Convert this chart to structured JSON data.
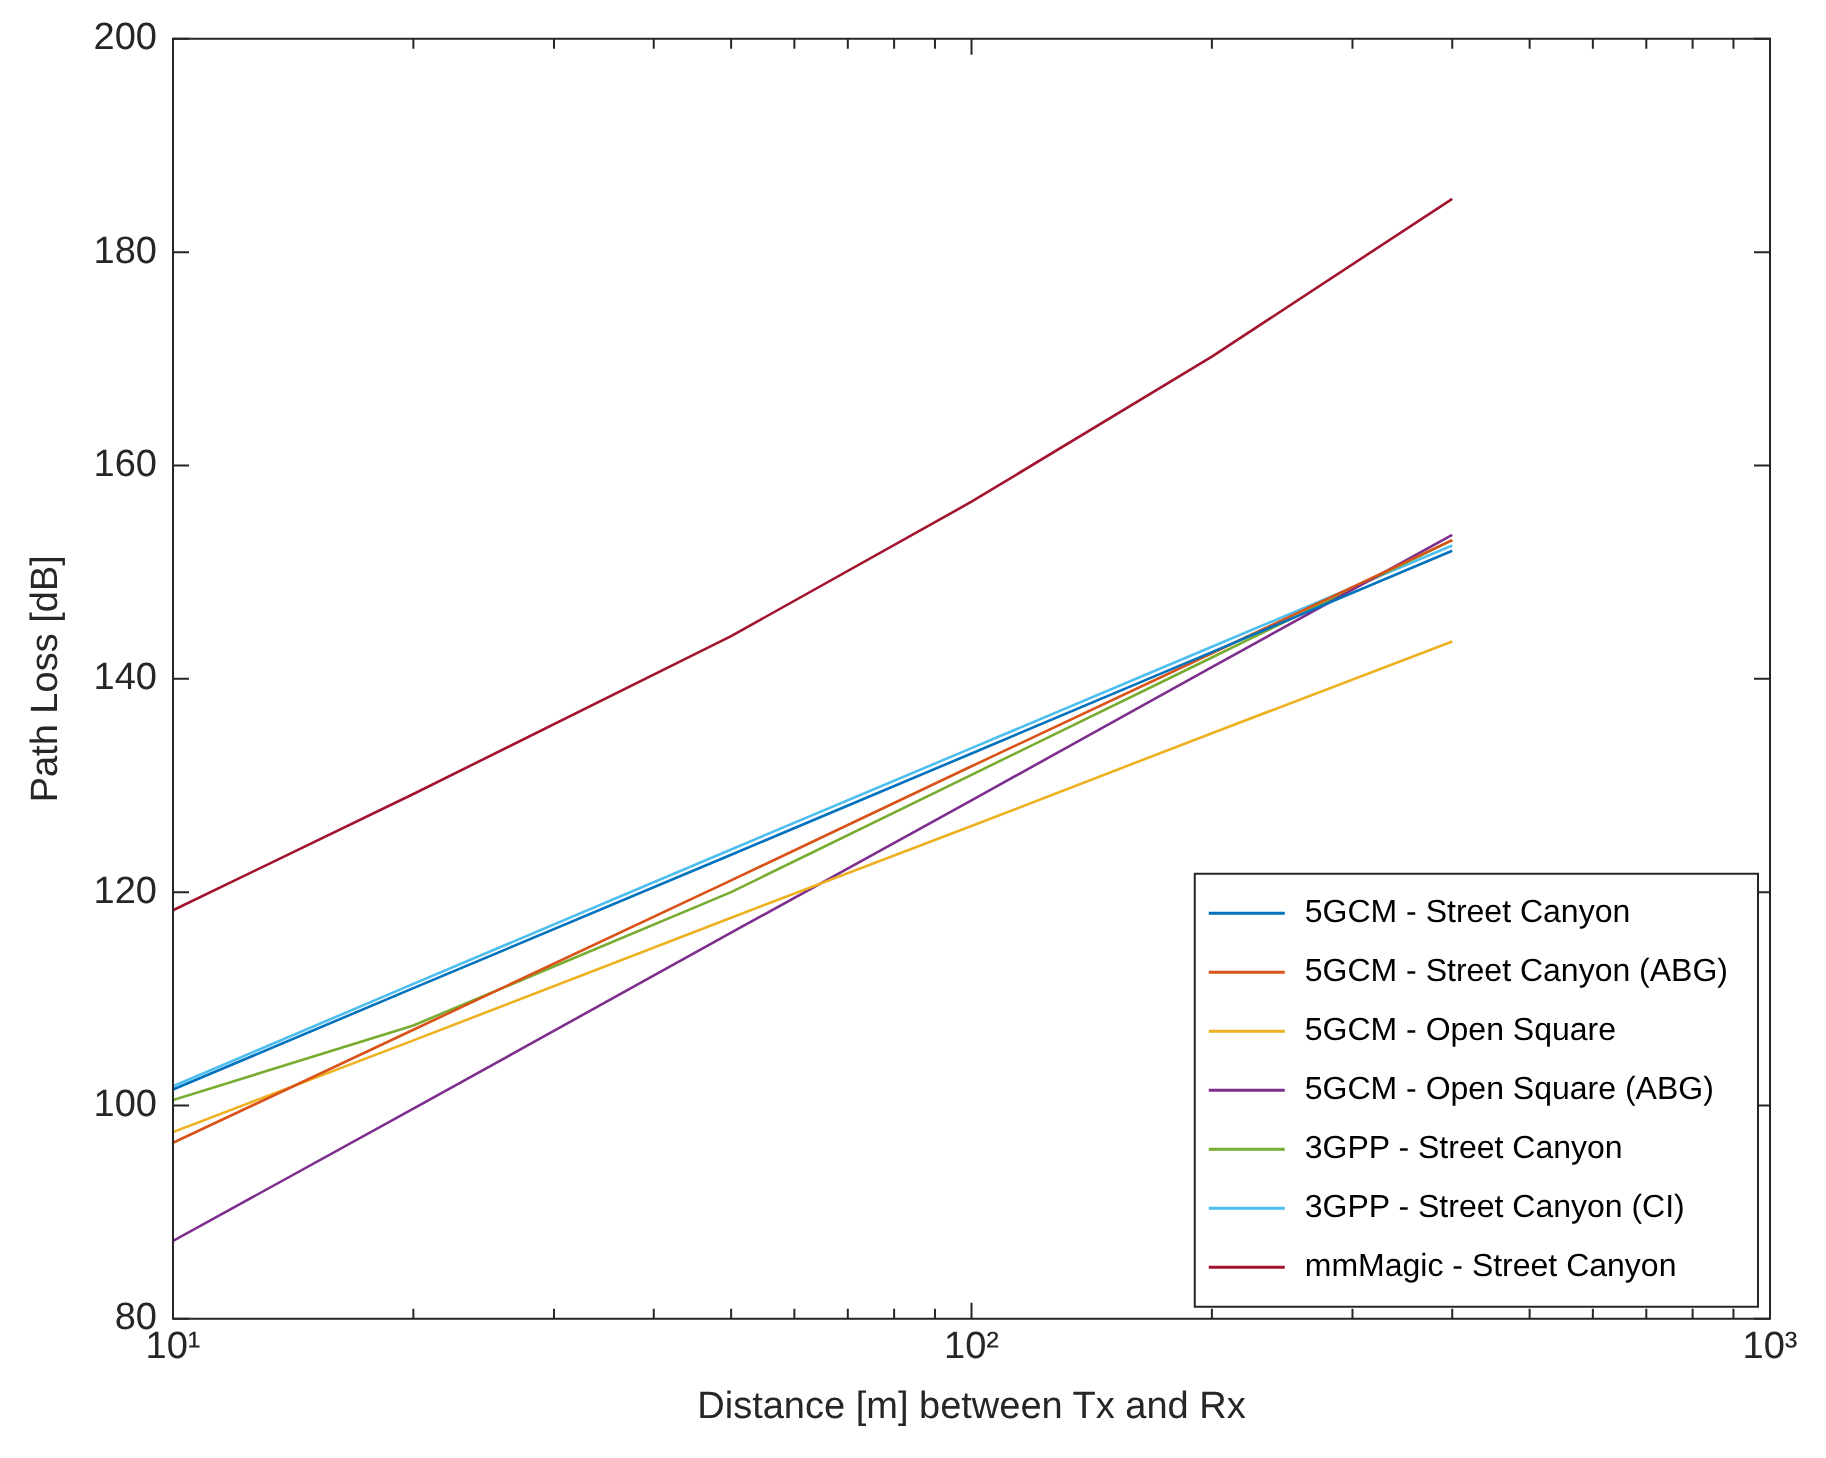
{
  "chart_data": {
    "type": "line",
    "xlabel": "Distance [m] between Tx and Rx",
    "ylabel": "Path Loss [dB]",
    "log": "x",
    "grid": false,
    "legend": "bottom right",
    "marker": "none",
    "line_style": "solid",
    "xlim": [
      10,
      1000
    ],
    "ylim": [
      80,
      200
    ],
    "xticks": [
      {
        "value": 10,
        "label": "10¹"
      },
      {
        "value": 20,
        "label": null
      },
      {
        "value": 30,
        "label": null
      },
      {
        "value": 40,
        "label": null
      },
      {
        "value": 50,
        "label": null
      },
      {
        "value": 60,
        "label": null
      },
      {
        "value": 70,
        "label": null
      },
      {
        "value": 80,
        "label": null
      },
      {
        "value": 90,
        "label": null
      },
      {
        "value": 100,
        "label": "10²"
      },
      {
        "value": 200,
        "label": null
      },
      {
        "value": 300,
        "label": null
      },
      {
        "value": 400,
        "label": null
      },
      {
        "value": 500,
        "label": null
      },
      {
        "value": 600,
        "label": null
      },
      {
        "value": 700,
        "label": null
      },
      {
        "value": 800,
        "label": null
      },
      {
        "value": 900,
        "label": null
      },
      {
        "value": 1000,
        "label": "10³"
      }
    ],
    "yticks": [
      80,
      100,
      120,
      140,
      160,
      180,
      200
    ],
    "x": [
      10,
      20,
      50,
      100,
      200,
      400
    ],
    "series": [
      {
        "name": "5GCM - Street Canyon",
        "color": "#0072bd",
        "values": [
          101.5,
          111,
          123.5,
          133,
          142.5,
          152
        ]
      },
      {
        "name": "5GCM - Street Canyon (ABG)",
        "color": "#d95319",
        "values": [
          96.5,
          107.1,
          121.1,
          131.8,
          142.4,
          153
        ]
      },
      {
        "name": "5GCM - Open Square",
        "color": "#edb120",
        "values": [
          97.5,
          106.1,
          117.6,
          126.2,
          134.9,
          143.5
        ]
      },
      {
        "name": "5GCM - Open Square (ABG)",
        "color": "#7e2f8e",
        "values": [
          87.3,
          99.7,
          116.2,
          128.6,
          141.1,
          153.5
        ]
      },
      {
        "name": "3GPP - Street Canyon",
        "color": "#77ac30",
        "values": [
          100.5,
          107.5,
          120,
          131,
          142,
          153
        ]
      },
      {
        "name": "3GPP - Street Canyon (CI)",
        "color": "#4dbeee",
        "values": [
          101.8,
          111.4,
          124,
          133.5,
          143,
          152.5
        ]
      },
      {
        "name": "mmMagic - Street Canyon",
        "color": "#a2142f",
        "values": [
          118.3,
          129.2,
          144,
          156.6,
          170.2,
          185
        ]
      }
    ]
  }
}
